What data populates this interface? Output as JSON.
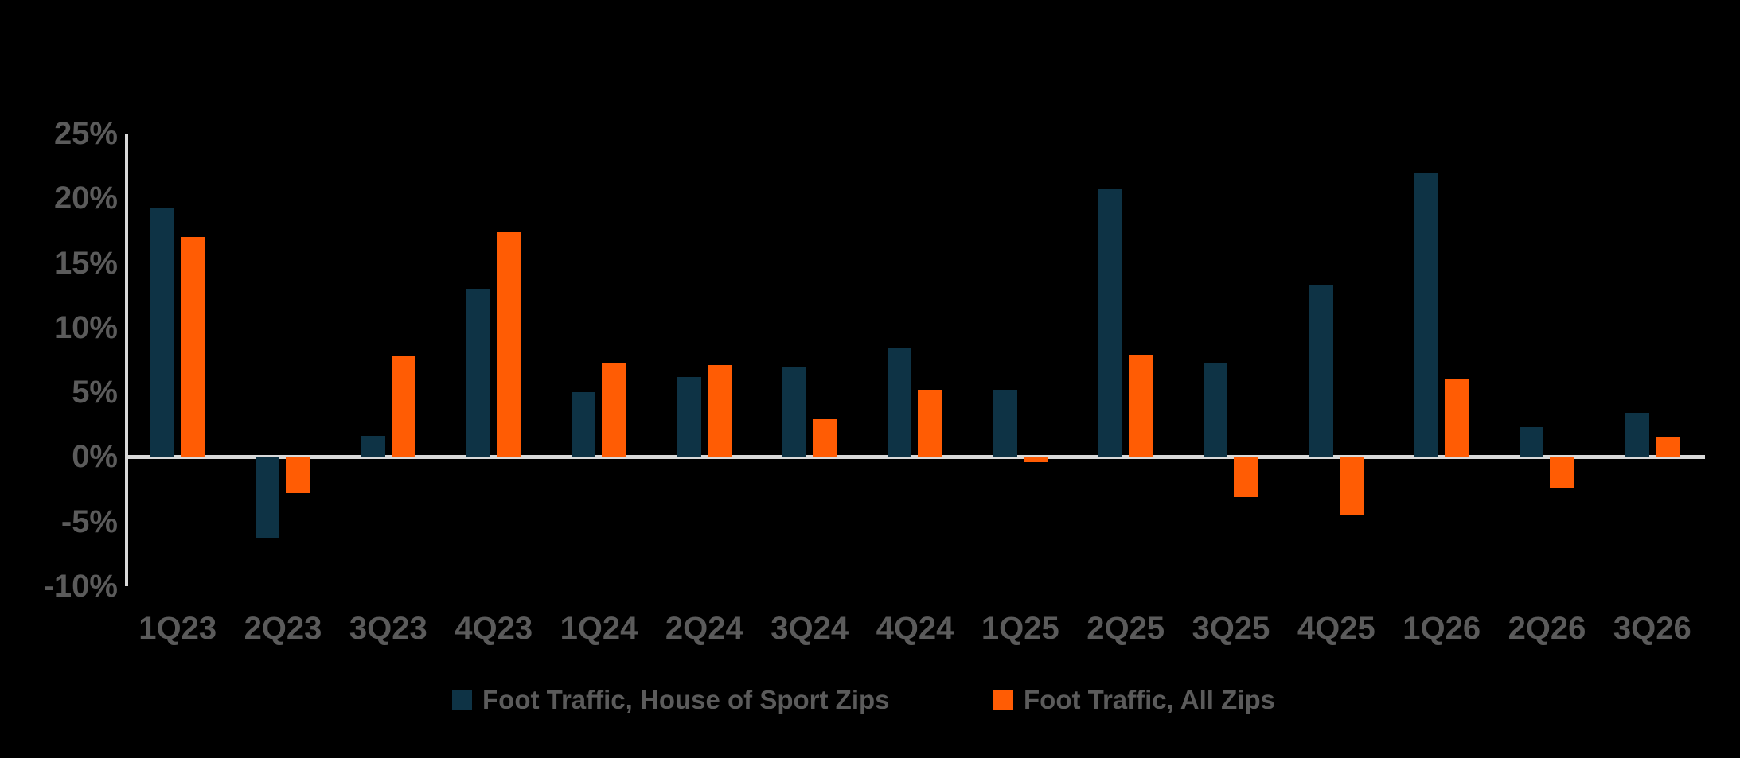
{
  "chart_data": {
    "type": "bar",
    "title": "",
    "categories": [
      "1Q23",
      "2Q23",
      "3Q23",
      "4Q23",
      "1Q24",
      "2Q24",
      "3Q24",
      "4Q24",
      "1Q25",
      "2Q25",
      "3Q25",
      "4Q25",
      "1Q26",
      "2Q26",
      "3Q26"
    ],
    "series": [
      {
        "name": "Foot Traffic, House of Sport Zips",
        "color": "#0e3345",
        "values": [
          19.3,
          -6.3,
          1.6,
          13.0,
          5.0,
          6.2,
          7.0,
          8.4,
          5.2,
          20.7,
          7.2,
          13.3,
          21.9,
          2.3,
          3.4
        ]
      },
      {
        "name": "Foot Traffic, All Zips",
        "color": "#ff5c04",
        "values": [
          17.0,
          -2.8,
          7.8,
          17.4,
          7.2,
          7.1,
          2.9,
          5.2,
          -0.4,
          7.9,
          -3.1,
          -4.5,
          6.0,
          -2.4,
          1.5
        ]
      }
    ],
    "y_axis": {
      "min": -10,
      "max": 25,
      "tick_step": 5,
      "tick_values": [
        25,
        20,
        15,
        10,
        5,
        0,
        -5,
        -10
      ],
      "tick_labels": [
        "25%",
        "20%",
        "15%",
        "10%",
        "5%",
        "0%",
        "-5%",
        "-10%"
      ],
      "unit": "%"
    },
    "x_axis": {
      "label": ""
    },
    "grid": false,
    "legend_position": "bottom",
    "colors": {
      "background": "#000000",
      "axis_line": "#d9d9d9",
      "tick_label": "#5b5b5b",
      "legend_text": "#5b5b5b"
    }
  }
}
